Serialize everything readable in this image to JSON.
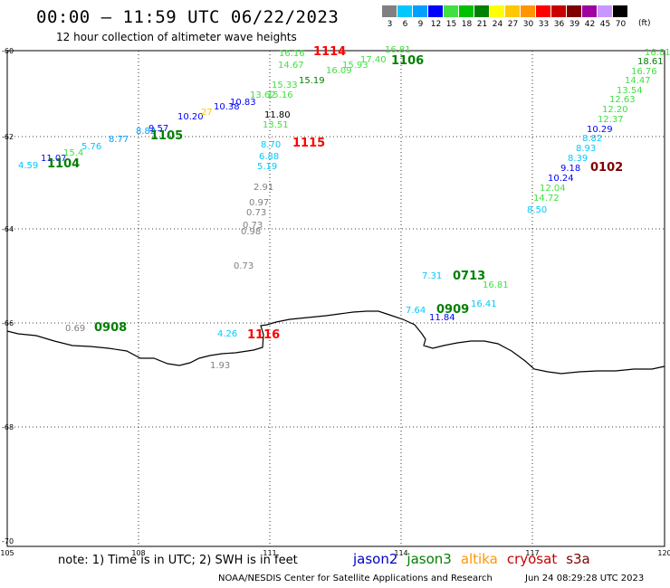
{
  "header": {
    "title": "00:00 – 11:59 UTC 06/22/2023",
    "subtitle": "12 hour collection of altimeter wave heights"
  },
  "legend": {
    "labels": [
      "3",
      "6",
      "9",
      "12",
      "15",
      "18",
      "21",
      "24",
      "27",
      "30",
      "33",
      "36",
      "39",
      "42",
      "45",
      "70"
    ],
    "unit": "(ft)",
    "colors": [
      "#808080",
      "#00c8ff",
      "#00a0ff",
      "#0000ff",
      "#40e040",
      "#00c000",
      "#008000",
      "#ffff00",
      "#ffc800",
      "#ff9600",
      "#ff0000",
      "#c80000",
      "#800000",
      "#a000a0",
      "#c896ff",
      "#000000"
    ]
  },
  "axes": {
    "lon_ticks": [
      "105",
      "108",
      "111",
      "114",
      "117",
      "120"
    ],
    "lat_ticks": [
      "-60",
      "-62",
      "-64",
      "-66",
      "-68",
      "-70"
    ]
  },
  "tracks": [
    {
      "pass": "1104",
      "pass_color": "#008000",
      "pass_pos": [
        52,
        185
      ],
      "points": [
        {
          "v": "4.59",
          "c": "#00c8ff",
          "p": [
            20,
            186
          ]
        },
        {
          "v": "11.07",
          "c": "#0000ff",
          "p": [
            45,
            178
          ]
        },
        {
          "v": "15.4",
          "c": "#40e040",
          "p": [
            70,
            172
          ]
        },
        {
          "v": "5.76",
          "c": "#00c8ff",
          "p": [
            90,
            165
          ]
        },
        {
          "v": "8.77",
          "c": "#00a0ff",
          "p": [
            120,
            157
          ]
        },
        {
          "v": "8.82",
          "c": "#00a0ff",
          "p": [
            150,
            148
          ]
        }
      ]
    },
    {
      "pass": "1105",
      "pass_color": "#008000",
      "pass_pos": [
        166,
        154
      ],
      "points": [
        {
          "v": "9.57",
          "c": "#0000ff",
          "p": [
            164,
            145
          ]
        },
        {
          "v": "10.20",
          "c": "#0000ff",
          "p": [
            196,
            132
          ]
        },
        {
          "v": "27",
          "c": "#ffc800",
          "p": [
            222,
            127
          ]
        },
        {
          "v": "10.38",
          "c": "#0000ff",
          "p": [
            236,
            121
          ]
        },
        {
          "v": "10.83",
          "c": "#0000ff",
          "p": [
            254,
            116
          ]
        },
        {
          "v": "13.62",
          "c": "#40e040",
          "p": [
            276,
            108
          ]
        },
        {
          "v": "15.33",
          "c": "#40e040",
          "p": [
            300,
            97
          ]
        },
        {
          "v": "15.19",
          "c": "#008000",
          "p": [
            330,
            92
          ]
        },
        {
          "v": "16.09",
          "c": "#40e040",
          "p": [
            360,
            81
          ]
        },
        {
          "v": "15.93",
          "c": "#40e040",
          "p": [
            378,
            75
          ]
        },
        {
          "v": "17.40",
          "c": "#40e040",
          "p": [
            398,
            69
          ]
        },
        {
          "v": "16.81",
          "c": "#40e040",
          "p": [
            425,
            58
          ]
        }
      ]
    },
    {
      "pass": "1106",
      "pass_color": "#008000",
      "pass_pos": [
        432,
        71
      ],
      "points": []
    },
    {
      "pass": "1114",
      "pass_color": "#ff0000",
      "pass_pos": [
        346,
        61
      ],
      "points": [
        {
          "v": "16.16",
          "c": "#40e040",
          "p": [
            308,
            62
          ]
        },
        {
          "v": "14.67",
          "c": "#40e040",
          "p": [
            307,
            75
          ]
        },
        {
          "v": "15.16",
          "c": "#40e040",
          "p": [
            295,
            108
          ]
        },
        {
          "v": "11.80",
          "c": "#000000",
          "p": [
            292,
            130
          ]
        },
        {
          "v": "13.51",
          "c": "#40e040",
          "p": [
            290,
            141
          ]
        }
      ]
    },
    {
      "pass": "1115",
      "pass_color": "#ff0000",
      "pass_pos": [
        323,
        162
      ],
      "points": [
        {
          "v": "8.70",
          "c": "#00c8ff",
          "p": [
            288,
            163
          ]
        },
        {
          "v": "6.88",
          "c": "#00c8ff",
          "p": [
            286,
            176
          ]
        },
        {
          "v": "5.19",
          "c": "#00c8ff",
          "p": [
            284,
            187
          ]
        },
        {
          "v": "2.91",
          "c": "#808080",
          "p": [
            280,
            210
          ]
        },
        {
          "v": "0.97",
          "c": "#808080",
          "p": [
            275,
            227
          ]
        },
        {
          "v": "0.73",
          "c": "#808080",
          "p": [
            272,
            238
          ]
        },
        {
          "v": "0.73",
          "c": "#808080",
          "p": [
            268,
            252
          ]
        },
        {
          "v": "0.98",
          "c": "#808080",
          "p": [
            266,
            259
          ]
        },
        {
          "v": "0.73",
          "c": "#808080",
          "p": [
            258,
            297
          ]
        }
      ]
    },
    {
      "pass": "1116",
      "pass_color": "#ff0000",
      "pass_pos": [
        273,
        374
      ],
      "points": [
        {
          "v": "4.26",
          "c": "#00c8ff",
          "p": [
            240,
            372
          ]
        },
        {
          "v": "1.93",
          "c": "#808080",
          "p": [
            232,
            407
          ]
        }
      ]
    },
    {
      "pass": "0908",
      "pass_color": "#008000",
      "pass_pos": [
        104,
        366
      ],
      "points": [
        {
          "v": "0.69",
          "c": "#808080",
          "p": [
            72,
            366
          ]
        }
      ]
    },
    {
      "pass": "0713",
      "pass_color": "#008000",
      "pass_pos": [
        500,
        309
      ],
      "points": [
        {
          "v": "7.31",
          "c": "#00c8ff",
          "p": [
            466,
            308
          ]
        },
        {
          "v": "16.81",
          "c": "#40e040",
          "p": [
            533,
            318
          ]
        },
        {
          "v": "16.41",
          "c": "#00c8ff",
          "p": [
            520,
            339
          ]
        }
      ]
    },
    {
      "pass": "0909",
      "pass_color": "#008000",
      "pass_pos": [
        482,
        346
      ],
      "points": [
        {
          "v": "7.64",
          "c": "#00c8ff",
          "p": [
            448,
            346
          ]
        },
        {
          "v": "11.84",
          "c": "#0000ff",
          "p": [
            474,
            354
          ]
        }
      ]
    },
    {
      "pass": "0102",
      "pass_color": "#800000",
      "pass_pos": [
        652,
        189
      ],
      "points": [
        {
          "v": "16.81",
          "c": "#40e040",
          "p": [
            712,
            61
          ]
        },
        {
          "v": "18.61",
          "c": "#008000",
          "p": [
            704,
            71
          ]
        },
        {
          "v": "16.76",
          "c": "#40e040",
          "p": [
            697,
            82
          ]
        },
        {
          "v": "14.47",
          "c": "#40e040",
          "p": [
            690,
            92
          ]
        },
        {
          "v": "13.54",
          "c": "#40e040",
          "p": [
            681,
            103
          ]
        },
        {
          "v": "12.63",
          "c": "#40e040",
          "p": [
            673,
            113
          ]
        },
        {
          "v": "12.20",
          "c": "#40e040",
          "p": [
            665,
            124
          ]
        },
        {
          "v": "12.37",
          "c": "#40e040",
          "p": [
            660,
            135
          ]
        },
        {
          "v": "10.29",
          "c": "#0000ff",
          "p": [
            648,
            146
          ]
        },
        {
          "v": "8.82",
          "c": "#00c8ff",
          "p": [
            643,
            156
          ]
        },
        {
          "v": "8.93",
          "c": "#00c8ff",
          "p": [
            636,
            167
          ]
        },
        {
          "v": "8.39",
          "c": "#00c8ff",
          "p": [
            627,
            178
          ]
        },
        {
          "v": "9.18",
          "c": "#0000ff",
          "p": [
            619,
            189
          ]
        },
        {
          "v": "10.24",
          "c": "#0000ff",
          "p": [
            605,
            200
          ]
        },
        {
          "v": "12.04",
          "c": "#40e040",
          "p": [
            596,
            211
          ]
        },
        {
          "v": "14.72",
          "c": "#40e040",
          "p": [
            589,
            222
          ]
        },
        {
          "v": "8.50",
          "c": "#00c8ff",
          "p": [
            582,
            235
          ]
        }
      ]
    }
  ],
  "footer": {
    "note": "note:  1) Time is in UTC; 2) SWH is in feet",
    "satellites": [
      {
        "name": "jason2",
        "color": "#0000c8"
      },
      {
        "name": "jason3",
        "color": "#008000"
      },
      {
        "name": "altika",
        "color": "#ff9600"
      },
      {
        "name": "cryosat",
        "color": "#c80000"
      },
      {
        "name": "s3a",
        "color": "#800000"
      }
    ],
    "credit": "NOAA/NESDIS Center for Satellite Applications and Research",
    "timestamp": "Jun 24 08:29:28 UTC 2023"
  }
}
